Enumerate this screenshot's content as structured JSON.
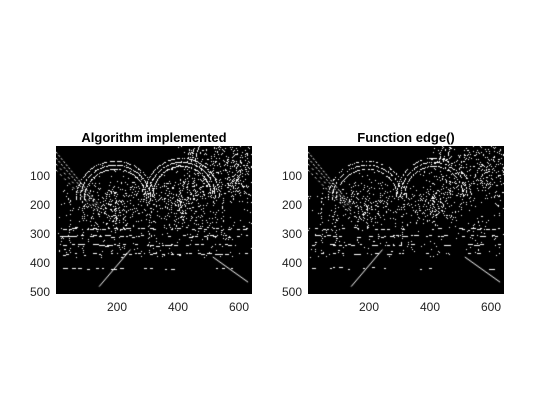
{
  "panels": [
    {
      "title": "Algorithm implemented",
      "y_ticks": [
        "100",
        "200",
        "300",
        "400",
        "500"
      ],
      "x_ticks": [
        "200",
        "400",
        "600"
      ],
      "image": "edge-detected grayscale photo of an arched hallway (custom algorithm)"
    },
    {
      "title": "Function edge()",
      "y_ticks": [
        "100",
        "200",
        "300",
        "400",
        "500"
      ],
      "x_ticks": [
        "200",
        "400",
        "600"
      ],
      "image": "edge-detected grayscale photo of an arched hallway (MATLAB edge function)"
    }
  ],
  "colors": {
    "background": "#ffffff",
    "image_bg": "#000000",
    "edges": "#ffffff"
  }
}
